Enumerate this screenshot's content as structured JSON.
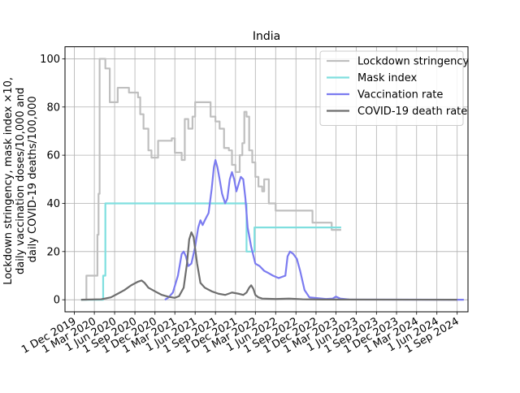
{
  "chart_data": {
    "type": "line",
    "title": "India",
    "ylabel_lines": [
      "Lockdown stringency, mask index ×10,",
      "daily vaccination doses/10,000 and",
      "daily COVID-19 deaths/100,000"
    ],
    "xlim": [
      "2019-10-20",
      "2024-10-20"
    ],
    "ylim": [
      -5,
      105
    ],
    "y_ticks": [
      0,
      20,
      40,
      60,
      80,
      100
    ],
    "x_ticks": [
      {
        "date": "2019-12-01",
        "label": "1 Dec 2019"
      },
      {
        "date": "2020-03-01",
        "label": "1 Mar 2020"
      },
      {
        "date": "2020-06-01",
        "label": "1 Jun 2020"
      },
      {
        "date": "2020-09-01",
        "label": "1 Sep 2020"
      },
      {
        "date": "2020-12-01",
        "label": "1 Dec 2020"
      },
      {
        "date": "2021-03-01",
        "label": "1 Mar 2021"
      },
      {
        "date": "2021-06-01",
        "label": "1 Jun 2021"
      },
      {
        "date": "2021-09-01",
        "label": "1 Sep 2021"
      },
      {
        "date": "2021-12-01",
        "label": "1 Dec 2021"
      },
      {
        "date": "2022-03-01",
        "label": "1 Mar 2022"
      },
      {
        "date": "2022-06-01",
        "label": "1 Jun 2022"
      },
      {
        "date": "2022-09-01",
        "label": "1 Sep 2022"
      },
      {
        "date": "2022-12-01",
        "label": "1 Dec 2022"
      },
      {
        "date": "2023-03-01",
        "label": "1 Mar 2023"
      },
      {
        "date": "2023-06-01",
        "label": "1 Jun 2023"
      },
      {
        "date": "2023-09-01",
        "label": "1 Sep 2023"
      },
      {
        "date": "2023-12-01",
        "label": "1 Dec 2023"
      },
      {
        "date": "2024-03-01",
        "label": "1 Mar 2024"
      },
      {
        "date": "2024-06-01",
        "label": "1 Jun 2024"
      },
      {
        "date": "2024-09-01",
        "label": "1 Sep 2024"
      }
    ],
    "grid": true,
    "legend_position": "top-right",
    "series": [
      {
        "name": "Lockdown stringency",
        "color": "#bfbfbf",
        "step": true,
        "points": [
          [
            "2020-01-01",
            0
          ],
          [
            "2020-01-25",
            10
          ],
          [
            "2020-03-10",
            10
          ],
          [
            "2020-03-15",
            27
          ],
          [
            "2020-03-20",
            44
          ],
          [
            "2020-03-25",
            100
          ],
          [
            "2020-04-20",
            96
          ],
          [
            "2020-05-10",
            82
          ],
          [
            "2020-06-15",
            88
          ],
          [
            "2020-08-01",
            88
          ],
          [
            "2020-08-05",
            86
          ],
          [
            "2020-09-15",
            84
          ],
          [
            "2020-09-25",
            77
          ],
          [
            "2020-10-10",
            71
          ],
          [
            "2020-11-01",
            62
          ],
          [
            "2020-11-15",
            59
          ],
          [
            "2020-12-15",
            66
          ],
          [
            "2021-02-01",
            66
          ],
          [
            "2021-02-15",
            67
          ],
          [
            "2021-03-01",
            61
          ],
          [
            "2021-04-01",
            58
          ],
          [
            "2021-04-15",
            75
          ],
          [
            "2021-05-01",
            71
          ],
          [
            "2021-05-20",
            76
          ],
          [
            "2021-06-01",
            82
          ],
          [
            "2021-08-01",
            82
          ],
          [
            "2021-08-10",
            76
          ],
          [
            "2021-09-01",
            74
          ],
          [
            "2021-09-20",
            71
          ],
          [
            "2021-10-10",
            63
          ],
          [
            "2021-11-01",
            62
          ],
          [
            "2021-11-15",
            56
          ],
          [
            "2021-12-01",
            53
          ],
          [
            "2021-12-20",
            60
          ],
          [
            "2022-01-01",
            65
          ],
          [
            "2022-01-10",
            78
          ],
          [
            "2022-01-20",
            76
          ],
          [
            "2022-02-01",
            62
          ],
          [
            "2022-02-15",
            57
          ],
          [
            "2022-03-01",
            51
          ],
          [
            "2022-03-15",
            47
          ],
          [
            "2022-04-01",
            45
          ],
          [
            "2022-04-10",
            50
          ],
          [
            "2022-05-01",
            40
          ],
          [
            "2022-06-01",
            37
          ],
          [
            "2022-11-01",
            37
          ],
          [
            "2022-11-15",
            32
          ],
          [
            "2023-01-01",
            32
          ],
          [
            "2023-02-01",
            32
          ],
          [
            "2023-02-10",
            29
          ],
          [
            "2023-03-25",
            29
          ]
        ]
      },
      {
        "name": "Mask index",
        "color": "#7fdfdf",
        "step": true,
        "points": [
          [
            "2020-01-01",
            0
          ],
          [
            "2020-04-01",
            0
          ],
          [
            "2020-04-10",
            10
          ],
          [
            "2020-04-20",
            40
          ],
          [
            "2022-01-15",
            40
          ],
          [
            "2022-01-20",
            20
          ],
          [
            "2022-02-25",
            30
          ],
          [
            "2023-03-25",
            30
          ]
        ]
      },
      {
        "name": "Vaccination rate",
        "color": "#7b7bf0",
        "step": false,
        "points": [
          [
            "2021-01-15",
            0
          ],
          [
            "2021-02-01",
            1
          ],
          [
            "2021-02-20",
            3
          ],
          [
            "2021-03-15",
            10
          ],
          [
            "2021-04-01",
            19
          ],
          [
            "2021-04-10",
            20
          ],
          [
            "2021-04-20",
            18
          ],
          [
            "2021-05-01",
            14
          ],
          [
            "2021-05-15",
            15
          ],
          [
            "2021-06-01",
            22
          ],
          [
            "2021-06-15",
            30
          ],
          [
            "2021-06-25",
            33
          ],
          [
            "2021-07-05",
            31
          ],
          [
            "2021-07-15",
            33
          ],
          [
            "2021-08-01",
            36
          ],
          [
            "2021-08-15",
            46
          ],
          [
            "2021-08-25",
            55
          ],
          [
            "2021-09-01",
            58
          ],
          [
            "2021-09-10",
            55
          ],
          [
            "2021-09-20",
            50
          ],
          [
            "2021-10-01",
            44
          ],
          [
            "2021-10-15",
            40
          ],
          [
            "2021-10-25",
            42
          ],
          [
            "2021-11-05",
            50
          ],
          [
            "2021-11-15",
            53
          ],
          [
            "2021-11-25",
            50
          ],
          [
            "2021-12-05",
            45
          ],
          [
            "2021-12-15",
            48
          ],
          [
            "2021-12-25",
            51
          ],
          [
            "2022-01-05",
            50
          ],
          [
            "2022-01-15",
            42
          ],
          [
            "2022-01-25",
            30
          ],
          [
            "2022-02-10",
            22
          ],
          [
            "2022-03-01",
            15
          ],
          [
            "2022-03-20",
            14
          ],
          [
            "2022-04-10",
            12
          ],
          [
            "2022-05-01",
            11
          ],
          [
            "2022-05-20",
            10
          ],
          [
            "2022-06-15",
            9
          ],
          [
            "2022-07-15",
            10
          ],
          [
            "2022-07-25",
            18
          ],
          [
            "2022-08-05",
            20
          ],
          [
            "2022-08-20",
            19
          ],
          [
            "2022-09-05",
            17
          ],
          [
            "2022-09-20",
            12
          ],
          [
            "2022-10-10",
            4
          ],
          [
            "2022-11-01",
            1
          ],
          [
            "2023-01-15",
            0.3
          ],
          [
            "2023-02-15",
            0.5
          ],
          [
            "2023-03-01",
            1.3
          ],
          [
            "2023-03-20",
            0.5
          ],
          [
            "2023-05-01",
            0.1
          ],
          [
            "2024-10-01",
            0
          ]
        ]
      },
      {
        "name": "COVID-19 death rate",
        "color": "#6e6e6e",
        "step": false,
        "points": [
          [
            "2020-01-01",
            0
          ],
          [
            "2020-04-01",
            0.2
          ],
          [
            "2020-05-15",
            1
          ],
          [
            "2020-06-15",
            2.5
          ],
          [
            "2020-07-15",
            4
          ],
          [
            "2020-08-15",
            6
          ],
          [
            "2020-09-15",
            7.5
          ],
          [
            "2020-10-01",
            8
          ],
          [
            "2020-10-15",
            7
          ],
          [
            "2020-11-01",
            5
          ],
          [
            "2020-12-01",
            3.5
          ],
          [
            "2021-01-01",
            2
          ],
          [
            "2021-02-01",
            1.2
          ],
          [
            "2021-03-01",
            0.8
          ],
          [
            "2021-03-20",
            1.5
          ],
          [
            "2021-04-10",
            5
          ],
          [
            "2021-04-25",
            15
          ],
          [
            "2021-05-05",
            25
          ],
          [
            "2021-05-15",
            28
          ],
          [
            "2021-05-25",
            26
          ],
          [
            "2021-06-10",
            15
          ],
          [
            "2021-06-25",
            7
          ],
          [
            "2021-07-15",
            5
          ],
          [
            "2021-08-15",
            3.5
          ],
          [
            "2021-09-15",
            2.5
          ],
          [
            "2021-10-15",
            2
          ],
          [
            "2021-11-15",
            3
          ],
          [
            "2021-12-15",
            2.5
          ],
          [
            "2022-01-05",
            2
          ],
          [
            "2022-01-20",
            3
          ],
          [
            "2022-02-01",
            5
          ],
          [
            "2022-02-10",
            6
          ],
          [
            "2022-02-20",
            4.5
          ],
          [
            "2022-03-01",
            2
          ],
          [
            "2022-03-15",
            1
          ],
          [
            "2022-04-01",
            0.5
          ],
          [
            "2022-06-01",
            0.3
          ],
          [
            "2022-08-01",
            0.5
          ],
          [
            "2022-10-01",
            0.2
          ],
          [
            "2023-01-01",
            0.1
          ],
          [
            "2024-09-01",
            0
          ]
        ]
      }
    ]
  }
}
